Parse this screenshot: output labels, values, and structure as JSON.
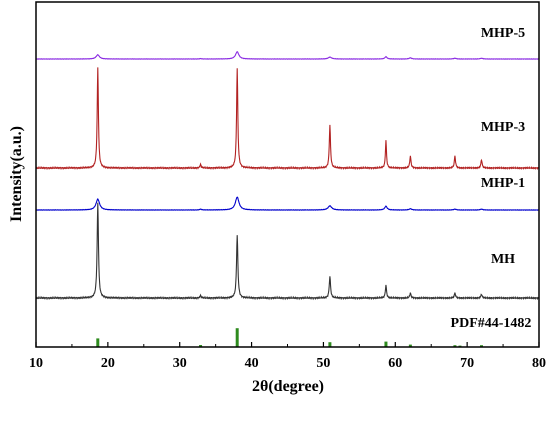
{
  "chart_data": {
    "type": "line",
    "xlabel": "2θ(degree)",
    "ylabel": "Intensity(a.u.)",
    "xlim": [
      10,
      80
    ],
    "x_ticks": [
      10,
      20,
      30,
      40,
      50,
      60,
      70,
      80
    ],
    "y_ticks_shown": false,
    "grid": false,
    "series": [
      {
        "name": "MHP-5",
        "color": "#8a2be2",
        "peaks": [
          {
            "x": 18.6,
            "h": 0.11,
            "w": 0.55
          },
          {
            "x": 32.9,
            "h": 0.01,
            "w": 0.3
          },
          {
            "x": 38.0,
            "h": 0.19,
            "w": 0.55
          },
          {
            "x": 50.9,
            "h": 0.05,
            "w": 0.55
          },
          {
            "x": 58.7,
            "h": 0.06,
            "w": 0.35
          },
          {
            "x": 62.1,
            "h": 0.03,
            "w": 0.4
          },
          {
            "x": 68.3,
            "h": 0.02,
            "w": 0.4
          },
          {
            "x": 72.0,
            "h": 0.02,
            "w": 0.4
          }
        ]
      },
      {
        "name": "MHP-3",
        "color": "#b22222",
        "peaks": [
          {
            "x": 18.6,
            "h": 0.84,
            "w": 0.2
          },
          {
            "x": 32.9,
            "h": 0.03,
            "w": 0.2
          },
          {
            "x": 38.0,
            "h": 0.84,
            "w": 0.2
          },
          {
            "x": 50.9,
            "h": 0.36,
            "w": 0.2
          },
          {
            "x": 58.7,
            "h": 0.23,
            "w": 0.18
          },
          {
            "x": 62.1,
            "h": 0.1,
            "w": 0.2
          },
          {
            "x": 68.3,
            "h": 0.1,
            "w": 0.2
          },
          {
            "x": 72.0,
            "h": 0.07,
            "w": 0.2
          }
        ]
      },
      {
        "name": "MHP-1",
        "color": "#0000cc",
        "peaks": [
          {
            "x": 18.6,
            "h": 0.26,
            "w": 0.6
          },
          {
            "x": 32.9,
            "h": 0.02,
            "w": 0.3
          },
          {
            "x": 38.0,
            "h": 0.31,
            "w": 0.6
          },
          {
            "x": 50.9,
            "h": 0.1,
            "w": 0.6
          },
          {
            "x": 58.7,
            "h": 0.09,
            "w": 0.4
          },
          {
            "x": 62.1,
            "h": 0.03,
            "w": 0.4
          },
          {
            "x": 68.3,
            "h": 0.02,
            "w": 0.4
          },
          {
            "x": 72.0,
            "h": 0.02,
            "w": 0.4
          }
        ]
      },
      {
        "name": "MH",
        "color": "#333333",
        "peaks": [
          {
            "x": 18.6,
            "h": 0.75,
            "w": 0.22
          },
          {
            "x": 32.9,
            "h": 0.02,
            "w": 0.2
          },
          {
            "x": 38.0,
            "h": 0.5,
            "w": 0.22
          },
          {
            "x": 50.9,
            "h": 0.17,
            "w": 0.22
          },
          {
            "x": 58.7,
            "h": 0.1,
            "w": 0.2
          },
          {
            "x": 62.1,
            "h": 0.04,
            "w": 0.2
          },
          {
            "x": 68.3,
            "h": 0.04,
            "w": 0.2
          },
          {
            "x": 72.0,
            "h": 0.03,
            "w": 0.2
          }
        ]
      },
      {
        "name": "PDF#44-1482",
        "color": "#2e8b1e",
        "style": "sticks",
        "sticks": [
          {
            "x": 18.6,
            "h": 0.43
          },
          {
            "x": 32.9,
            "h": 0.1
          },
          {
            "x": 38.0,
            "h": 0.94
          },
          {
            "x": 50.9,
            "h": 0.24
          },
          {
            "x": 58.7,
            "h": 0.27
          },
          {
            "x": 62.1,
            "h": 0.12
          },
          {
            "x": 68.3,
            "h": 0.09
          },
          {
            "x": 69.0,
            "h": 0.07
          },
          {
            "x": 72.0,
            "h": 0.09
          }
        ]
      }
    ]
  }
}
